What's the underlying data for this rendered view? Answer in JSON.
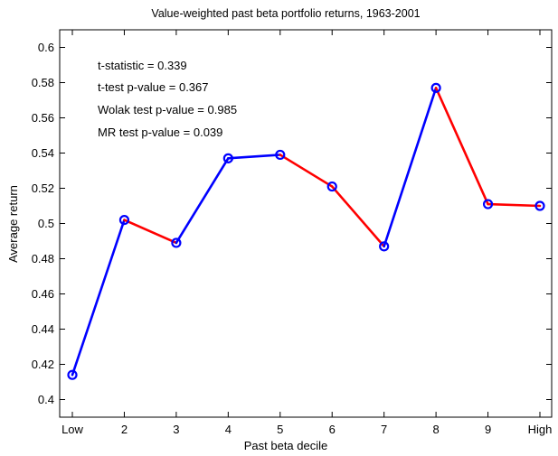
{
  "chart_data": {
    "type": "line",
    "title": "Value-weighted past beta portfolio returns, 1963-2001",
    "xlabel": "Past beta decile",
    "ylabel": "Average return",
    "categories": [
      "Low",
      "2",
      "3",
      "4",
      "5",
      "6",
      "7",
      "8",
      "9",
      "High"
    ],
    "values": [
      0.414,
      0.502,
      0.489,
      0.537,
      0.539,
      0.521,
      0.487,
      0.577,
      0.511,
      0.51
    ],
    "ylim": [
      0.39,
      0.61
    ],
    "yticks": [
      0.4,
      0.42,
      0.44,
      0.46,
      0.48,
      0.5,
      0.52,
      0.54,
      0.56,
      0.58,
      0.6
    ],
    "ytick_labels": [
      "0.4",
      "0.42",
      "0.44",
      "0.46",
      "0.48",
      "0.5",
      "0.52",
      "0.54",
      "0.56",
      "0.58",
      "0.6"
    ],
    "annotations": [
      "t-statistic = 0.339",
      "t-test p-value = 0.367",
      "Wolak test p-value = 0.985",
      "MR test p-value = 0.039"
    ],
    "grid": false,
    "colors": {
      "increasing": "#0000ff",
      "decreasing": "#ff0000",
      "marker": "#0000ff",
      "axes": "#000000"
    }
  }
}
